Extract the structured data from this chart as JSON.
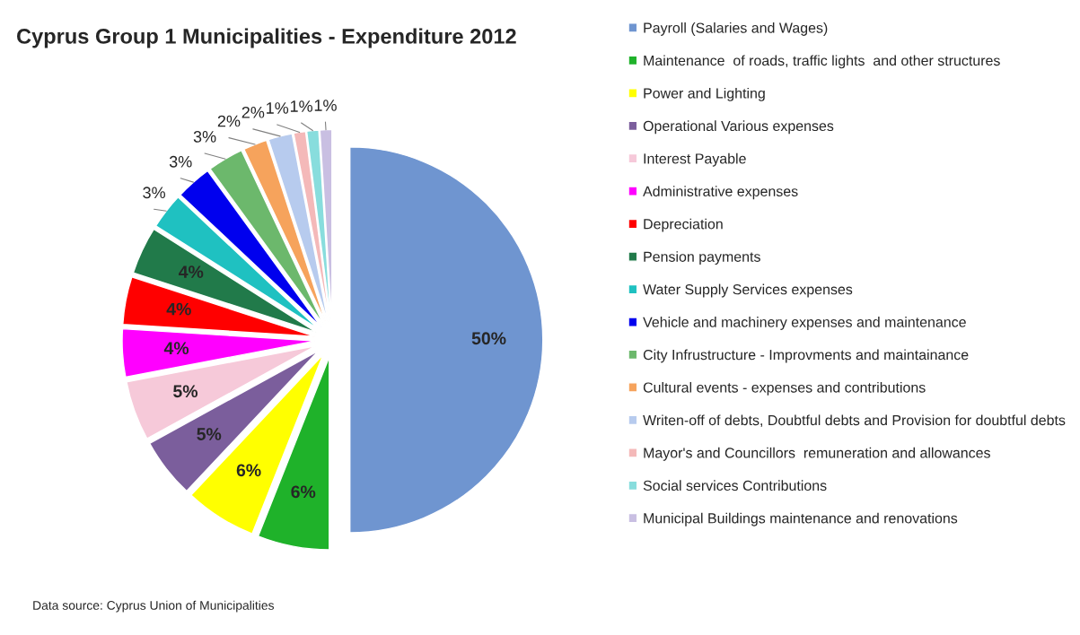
{
  "chart_data": {
    "type": "pie",
    "title": "Cyprus Group 1 Municipalities - Expenditure 2012",
    "categories": [
      "Payroll (Salaries and Wages)",
      "Maintenance  of roads, traffic lights  and other structures",
      "Power and Lighting",
      "Operational Various expenses",
      "Interest Payable",
      "Administrative expenses",
      "Depreciation",
      "Pension payments",
      "Water Supply Services expenses",
      "Vehicle and machinery expenses and maintenance",
      "City Infrustructure - Improvments and maintainance",
      "Cultural events - expenses and contributions",
      "Writen-off of debts, Doubtful debts and Provision for doubtful debts",
      "Mayor's and Councillors  remuneration and allowances",
      "Social services Contributions",
      "Municipal Buildings maintenance and renovations"
    ],
    "values": [
      50,
      6,
      6,
      5,
      5,
      4,
      4,
      4,
      3,
      3,
      3,
      2,
      2,
      1,
      1,
      1
    ],
    "colors": [
      "#6f95d0",
      "#1fb22a",
      "#ffff00",
      "#7b5e9c",
      "#f6c9d9",
      "#ff00ff",
      "#ff0000",
      "#217a4a",
      "#1fc1c1",
      "#0000ee",
      "#6cb86c",
      "#f6a35c",
      "#b7cbee",
      "#f4b9b9",
      "#88dddd",
      "#c9bfe2"
    ],
    "value_labels": [
      "50%",
      "6%",
      "6%",
      "5%",
      "5%",
      "4%",
      "4%",
      "4%",
      "3%",
      "3%",
      "3%",
      "2%",
      "2%",
      "1%",
      "1%",
      "1%"
    ],
    "legend": "right",
    "annotations": [
      "Data source: Cyprus Union of Municipalities"
    ]
  }
}
